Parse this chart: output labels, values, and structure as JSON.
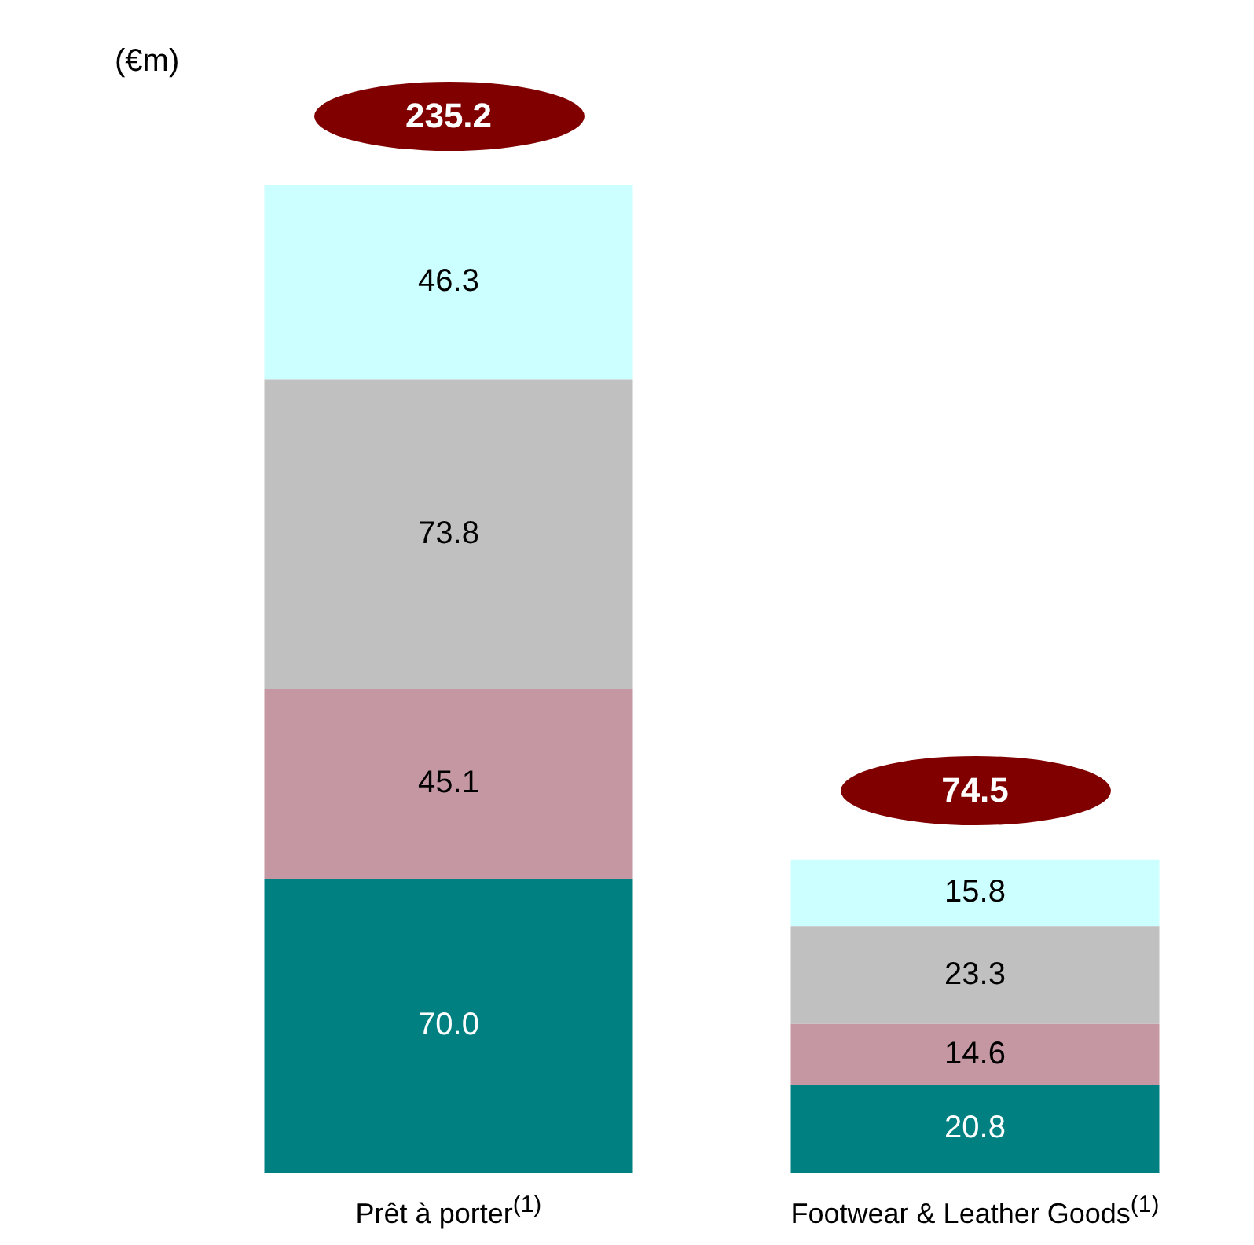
{
  "chart_data": {
    "type": "bar",
    "ylabel": "(€m)",
    "categories": [
      "Prêt à porter$^{(1)}$",
      "Footwear & Leather Goods$^{(1)}$"
    ],
    "stacked": true,
    "grid": false,
    "legend": false,
    "tick_labels": "x",
    "series": [
      {
        "color": "#008080",
        "values": [
          70.0,
          20.8
        ],
        "value_labels": [
          "70.0",
          "20.8"
        ]
      },
      {
        "color": "#c497a3",
        "values": [
          45.1,
          14.6
        ],
        "value_labels": [
          "45.1",
          "14.6"
        ]
      },
      {
        "color": "#c0c0c0",
        "values": [
          73.8,
          23.3
        ],
        "value_labels": [
          "73.8",
          "23.3"
        ]
      },
      {
        "color": "#ccffff",
        "values": [
          46.3,
          15.8
        ],
        "value_labels": [
          "46.3",
          "15.8"
        ]
      }
    ],
    "totals": [
      "235.2",
      "74.5"
    ]
  }
}
